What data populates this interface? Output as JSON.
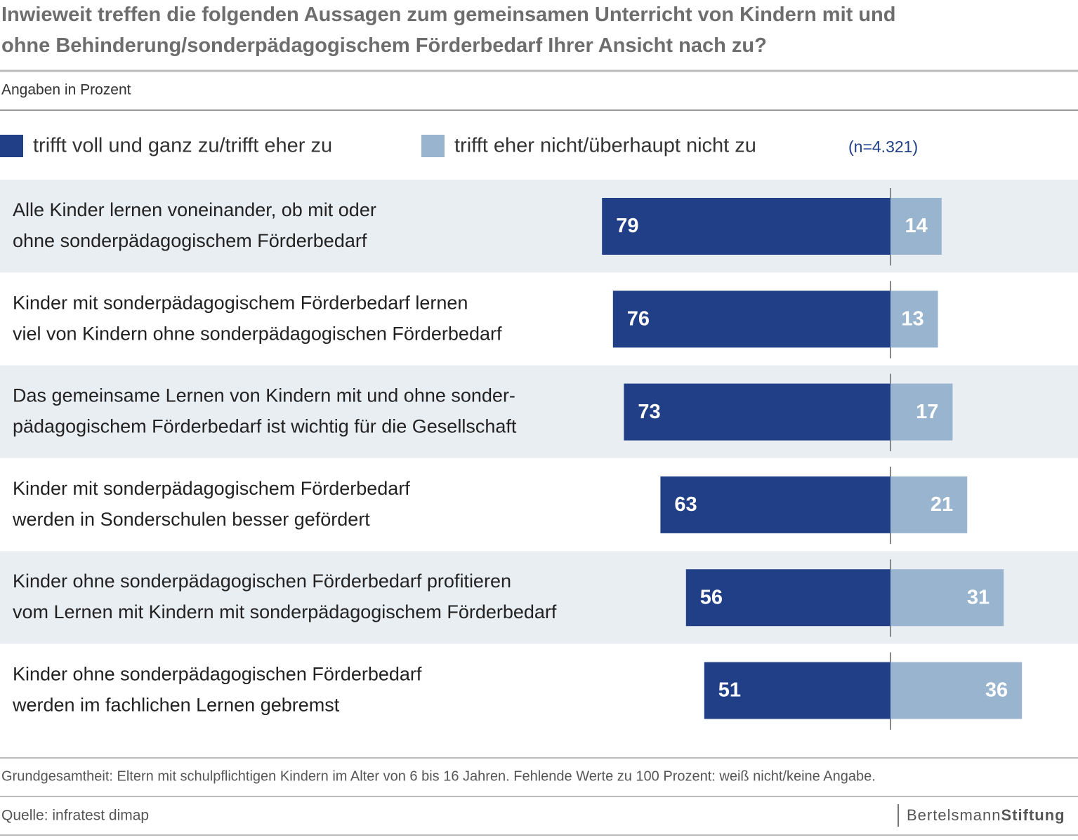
{
  "chart_data": {
    "type": "diverging-bar",
    "title": "Inwieweit treffen die folgenden Aussagen zum gemeinsamen Unterricht von Kindern mit und\nohne Behinderung/sonderpädagogischem Förderbedarf Ihrer Ansicht nach zu?",
    "subtitle": "Angaben in Prozent",
    "note": "(n=4.321)",
    "categories": [
      "Alle Kinder lernen voneinander, ob mit oder\nohne sonderpädagogischem Förderbedarf",
      "Kinder mit sonderpädagogischem Förderbedarf lernen\nviel von Kindern ohne sonderpädagogischen Förderbedarf",
      "Das gemeinsame Lernen von Kindern mit und ohne sonder-\npädagogischem Förderbedarf ist wichtig für die Gesellschaft",
      "Kinder mit sonderpädagogischem Förderbedarf\nwerden in Sonderschulen besser gefördert",
      "Kinder ohne sonderpädagogischen Förderbedarf profitieren\nvom Lernen mit Kindern mit sonderpädagogischem Förderbedarf",
      "Kinder ohne sonderpädagogischen Förderbedarf\nwerden im fachlichen Lernen gebremst"
    ],
    "series": [
      {
        "name": "trifft voll und ganz zu/trifft eher zu",
        "color": "#213f86",
        "values": [
          79,
          76,
          73,
          63,
          56,
          51
        ]
      },
      {
        "name": "trifft eher nicht/überhaupt nicht zu",
        "color": "#98b4cf",
        "values": [
          14,
          13,
          17,
          21,
          31,
          36
        ]
      }
    ],
    "footnote": "Grundgesamtheit: Eltern mit schulpflichtigen Kindern im Alter von 6 bis 16 Jahren. Fehlende Werte zu 100 Prozent: weiß nicht/keine Angabe.",
    "source": "Quelle: infratest dimap",
    "logo": {
      "left": "Bertelsmann",
      "right": "Stiftung"
    }
  }
}
